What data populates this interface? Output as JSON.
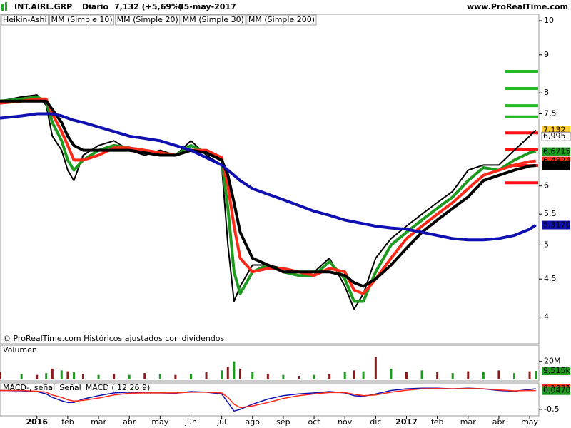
{
  "header": {
    "symbol": "INT.AIRL.GRP",
    "period": "Diario",
    "last": "7,132 (+5,69%)",
    "date": "05-may-2017",
    "site": "www.ProRealTime.com"
  },
  "chart_data": [
    {
      "type": "line",
      "log_scale": true,
      "note": "© ProRealTime.com Históricos ajustados con dividendos",
      "x": [
        -1.2,
        -0.5,
        0,
        0.3,
        0.5,
        0.8,
        1,
        1.2,
        1.5,
        2,
        2.5,
        3,
        3.5,
        4,
        4.5,
        5,
        5.5,
        6,
        6.2,
        6.4,
        6.6,
        7,
        7.5,
        8,
        8.5,
        9,
        9.5,
        10,
        10.3,
        10.6,
        11,
        11.5,
        12,
        12.5,
        13,
        13.5,
        14,
        14.5,
        15,
        15.5,
        16,
        16.2
      ],
      "xlim": [
        -1.2,
        16.3
      ],
      "ylim": [
        3.7,
        10.2
      ],
      "yticks": [
        10,
        9,
        8,
        {
          "value": 7.5,
          "label": "7,5"
        },
        6,
        {
          "value": 5.5,
          "label": "5,5"
        },
        5,
        {
          "value": 4.5,
          "label": "4,5"
        },
        4
      ],
      "series": [
        {
          "name": "Heikin-Ashi",
          "color": "#000000",
          "values": [
            7.8,
            7.9,
            7.95,
            7.7,
            7.0,
            6.7,
            6.3,
            6.1,
            6.6,
            6.8,
            6.9,
            6.7,
            6.6,
            6.7,
            6.6,
            6.9,
            6.6,
            6.4,
            5.0,
            4.2,
            4.4,
            4.7,
            4.7,
            4.65,
            4.55,
            4.6,
            4.8,
            4.4,
            4.1,
            4.3,
            4.8,
            5.1,
            5.3,
            5.5,
            5.7,
            5.9,
            6.3,
            6.4,
            6.4,
            6.7,
            7.0,
            7.132
          ]
        },
        {
          "name": "MM (Simple 10)",
          "color": "#1e9a1e",
          "values": [
            7.8,
            7.85,
            7.9,
            7.8,
            7.3,
            6.9,
            6.5,
            6.3,
            6.5,
            6.7,
            6.8,
            6.75,
            6.65,
            6.65,
            6.6,
            6.8,
            6.65,
            6.5,
            5.6,
            4.6,
            4.3,
            4.6,
            4.7,
            4.6,
            4.55,
            4.55,
            4.75,
            4.5,
            4.2,
            4.2,
            4.6,
            5.0,
            5.2,
            5.4,
            5.6,
            5.8,
            6.1,
            6.35,
            6.3,
            6.5,
            6.65,
            6.6715
          ]
        },
        {
          "name": "MM (Simple 20)",
          "color": "#ff2a1a",
          "values": [
            7.75,
            7.8,
            7.85,
            7.85,
            7.5,
            7.1,
            6.8,
            6.5,
            6.5,
            6.6,
            6.75,
            6.75,
            6.7,
            6.65,
            6.6,
            6.7,
            6.7,
            6.55,
            6.0,
            5.3,
            4.8,
            4.6,
            4.65,
            4.65,
            4.6,
            4.55,
            4.65,
            4.6,
            4.35,
            4.3,
            4.5,
            4.8,
            5.1,
            5.3,
            5.5,
            5.7,
            5.95,
            6.2,
            6.3,
            6.4,
            6.47,
            6.4824
          ]
        },
        {
          "name": "MM (Simple 30)",
          "color": "#000000",
          "values": [
            7.8,
            7.8,
            7.8,
            7.8,
            7.6,
            7.3,
            7.0,
            6.8,
            6.7,
            6.7,
            6.7,
            6.7,
            6.65,
            6.6,
            6.6,
            6.7,
            6.65,
            6.5,
            6.2,
            5.7,
            5.2,
            4.8,
            4.7,
            4.6,
            4.6,
            4.6,
            4.6,
            4.55,
            4.45,
            4.4,
            4.5,
            4.7,
            4.95,
            5.2,
            5.4,
            5.6,
            5.8,
            6.1,
            6.2,
            6.3,
            6.38,
            6.3926
          ]
        },
        {
          "name": "MM (Simple 200)",
          "color": "#1010b0",
          "values": [
            7.4,
            7.45,
            7.5,
            7.5,
            7.5,
            7.45,
            7.4,
            7.35,
            7.3,
            7.2,
            7.1,
            7.0,
            6.95,
            6.9,
            6.8,
            6.7,
            6.55,
            6.4,
            6.3,
            6.2,
            6.1,
            5.95,
            5.85,
            5.75,
            5.65,
            5.55,
            5.48,
            5.4,
            5.37,
            5.34,
            5.3,
            5.27,
            5.25,
            5.2,
            5.15,
            5.1,
            5.08,
            5.08,
            5.1,
            5.15,
            5.25,
            5.317
          ]
        }
      ],
      "levels": [
        {
          "value": 8.55,
          "color": "#22bb22"
        },
        {
          "value": 8.11,
          "color": "#22bb22"
        },
        {
          "value": 7.69,
          "color": "#22bb22"
        },
        {
          "value": 7.43,
          "color": "#22bb22"
        },
        {
          "value": 7.07,
          "color": "#ff1010"
        },
        {
          "value": 6.71,
          "color": "#ff1010"
        },
        {
          "value": 6.39,
          "color": "#ff1010"
        },
        {
          "value": 6.06,
          "color": "#ff1010"
        }
      ],
      "price_tags": [
        {
          "value": 7.132,
          "label": "7,132",
          "color": "#ffcc33"
        },
        {
          "value": 6.995,
          "label": "6,995",
          "color": "#ffffff"
        },
        {
          "value": 6.6715,
          "label": "6,6715",
          "color": "#1e9a1e"
        },
        {
          "value": 6.4824,
          "label": "6,4824",
          "color": "#ff2a1a"
        },
        {
          "value": 6.3926,
          "label": "6,3926",
          "color": "#000000"
        },
        {
          "value": 5.317,
          "label": "5,3170",
          "color": "#1010b0"
        }
      ]
    },
    {
      "type": "bar",
      "title": "Volumen",
      "color": "#8b1a1a",
      "x": [
        -1.2,
        -0.5,
        0,
        0.3,
        0.5,
        0.8,
        1,
        1.2,
        1.5,
        2,
        2.5,
        3,
        3.5,
        4,
        4.5,
        5,
        5.5,
        6,
        6.2,
        6.4,
        6.6,
        7,
        7.5,
        8,
        8.5,
        9,
        9.5,
        10,
        10.3,
        10.6,
        11,
        11.5,
        12,
        12.5,
        13,
        13.5,
        14,
        14.5,
        15,
        15.5,
        16,
        16.2
      ],
      "values": [
        8,
        6,
        5,
        7,
        12,
        10,
        9,
        8,
        6,
        5,
        6,
        5,
        7,
        6,
        5,
        6,
        8,
        10,
        14,
        20,
        12,
        8,
        6,
        5,
        4,
        5,
        6,
        8,
        10,
        9,
        25,
        12,
        8,
        10,
        8,
        7,
        9,
        8,
        10,
        7,
        9,
        9.515
      ],
      "xlim": [
        -1.2,
        16.3
      ],
      "ylim": [
        0,
        38
      ],
      "yticks": [
        {
          "value": 20,
          "label": "20M"
        }
      ],
      "price_tags": [
        {
          "value": 9.515,
          "label": "9,515k",
          "color": "#1e9a1e"
        }
      ]
    },
    {
      "type": "line",
      "legend": [
        "MACD-, señal",
        "Señal",
        "MACD ( 12 26 9)"
      ],
      "x": [
        -1.2,
        -0.5,
        0,
        0.3,
        0.5,
        0.8,
        1,
        1.2,
        1.5,
        2,
        2.5,
        3,
        3.5,
        4,
        4.5,
        5,
        5.5,
        6,
        6.2,
        6.4,
        6.6,
        7,
        7.5,
        8,
        8.5,
        9,
        9.5,
        10,
        10.3,
        10.6,
        11,
        11.5,
        12,
        12.5,
        13,
        13.5,
        14,
        14.5,
        15,
        15.5,
        16,
        16.2
      ],
      "xlim": [
        -1.2,
        16.3
      ],
      "ylim": [
        -0.69,
        0.27
      ],
      "yticks": [
        {
          "value": -0.5,
          "label": "-0,5"
        }
      ],
      "series": [
        {
          "color": "#1010b0",
          "values": [
            0.05,
            0.04,
            0.02,
            -0.05,
            -0.15,
            -0.25,
            -0.3,
            -0.3,
            -0.2,
            -0.1,
            -0.02,
            0,
            -0.02,
            -0.02,
            -0.03,
            0.02,
            0,
            -0.05,
            -0.3,
            -0.55,
            -0.5,
            -0.35,
            -0.2,
            -0.1,
            -0.05,
            -0.02,
            0.02,
            -0.02,
            -0.1,
            -0.12,
            -0.05,
            0.05,
            0.1,
            0.12,
            0.12,
            0.1,
            0.12,
            0.1,
            0.05,
            0.03,
            0.08,
            0.1031
          ]
        },
        {
          "color": "#ff2a1a",
          "values": [
            0.05,
            0.05,
            0.03,
            0,
            -0.08,
            -0.15,
            -0.22,
            -0.26,
            -0.24,
            -0.17,
            -0.08,
            -0.03,
            -0.02,
            -0.02,
            -0.02,
            0,
            0,
            -0.02,
            -0.15,
            -0.35,
            -0.45,
            -0.4,
            -0.3,
            -0.18,
            -0.1,
            -0.05,
            -0.01,
            -0.01,
            -0.06,
            -0.1,
            -0.08,
            0,
            0.06,
            0.1,
            0.11,
            0.1,
            0.11,
            0.1,
            0.07,
            0.04,
            0.05,
            0.047
          ]
        }
      ],
      "price_tags": [
        {
          "value": 0.1031,
          "label": "0,1031",
          "color": "#ff2a1a"
        },
        {
          "value": 0.047,
          "label": "0,0470",
          "color": "#1e9a1e"
        }
      ],
      "xticks": [
        {
          "value": 0,
          "label": "2016"
        },
        {
          "value": 1,
          "label": "feb"
        },
        {
          "value": 2,
          "label": "mar"
        },
        {
          "value": 3,
          "label": "abr"
        },
        {
          "value": 4,
          "label": "may"
        },
        {
          "value": 5,
          "label": "jun"
        },
        {
          "value": 6,
          "label": "jul"
        },
        {
          "value": 7,
          "label": "ago"
        },
        {
          "value": 8,
          "label": "sep"
        },
        {
          "value": 9,
          "label": "oct"
        },
        {
          "value": 10,
          "label": "nov"
        },
        {
          "value": 11,
          "label": "dic"
        },
        {
          "value": 12,
          "label": "2017"
        },
        {
          "value": 13,
          "label": "feb"
        },
        {
          "value": 14,
          "label": "mar"
        },
        {
          "value": 15,
          "label": "abr"
        },
        {
          "value": 16,
          "label": "may"
        }
      ]
    }
  ]
}
